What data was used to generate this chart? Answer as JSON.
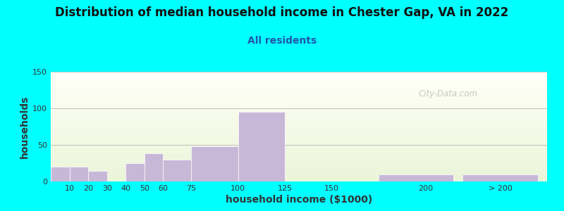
{
  "title": "Distribution of median household income in Chester Gap, VA in 2022",
  "subtitle": "All residents",
  "xlabel": "household income ($1000)",
  "ylabel": "households",
  "bar_labels": [
    "10",
    "20",
    "30",
    "40",
    "50",
    "60",
    "75",
    "100",
    "125",
    "150",
    "200",
    "> 200"
  ],
  "bar_values": [
    20,
    20,
    14,
    0,
    25,
    38,
    30,
    48,
    95,
    0,
    10,
    10
  ],
  "bar_color": "#c8b8d8",
  "ylim": [
    0,
    150
  ],
  "yticks": [
    0,
    50,
    100,
    150
  ],
  "background_color": "#00FFFF",
  "title_fontsize": 12,
  "subtitle_fontsize": 10,
  "axis_label_fontsize": 10,
  "subtitle_color": "#2255aa",
  "title_color": "#111111",
  "watermark": "City-Data.com",
  "bar_lefts": [
    0,
    10,
    20,
    30,
    40,
    50,
    60,
    75,
    100,
    125,
    175,
    220
  ],
  "bar_widths": [
    10,
    10,
    10,
    10,
    10,
    10,
    15,
    25,
    25,
    25,
    40,
    40
  ],
  "xtick_positions": [
    10,
    20,
    30,
    40,
    50,
    60,
    75,
    100,
    125,
    150,
    200,
    240
  ],
  "xlim": [
    0,
    265
  ]
}
